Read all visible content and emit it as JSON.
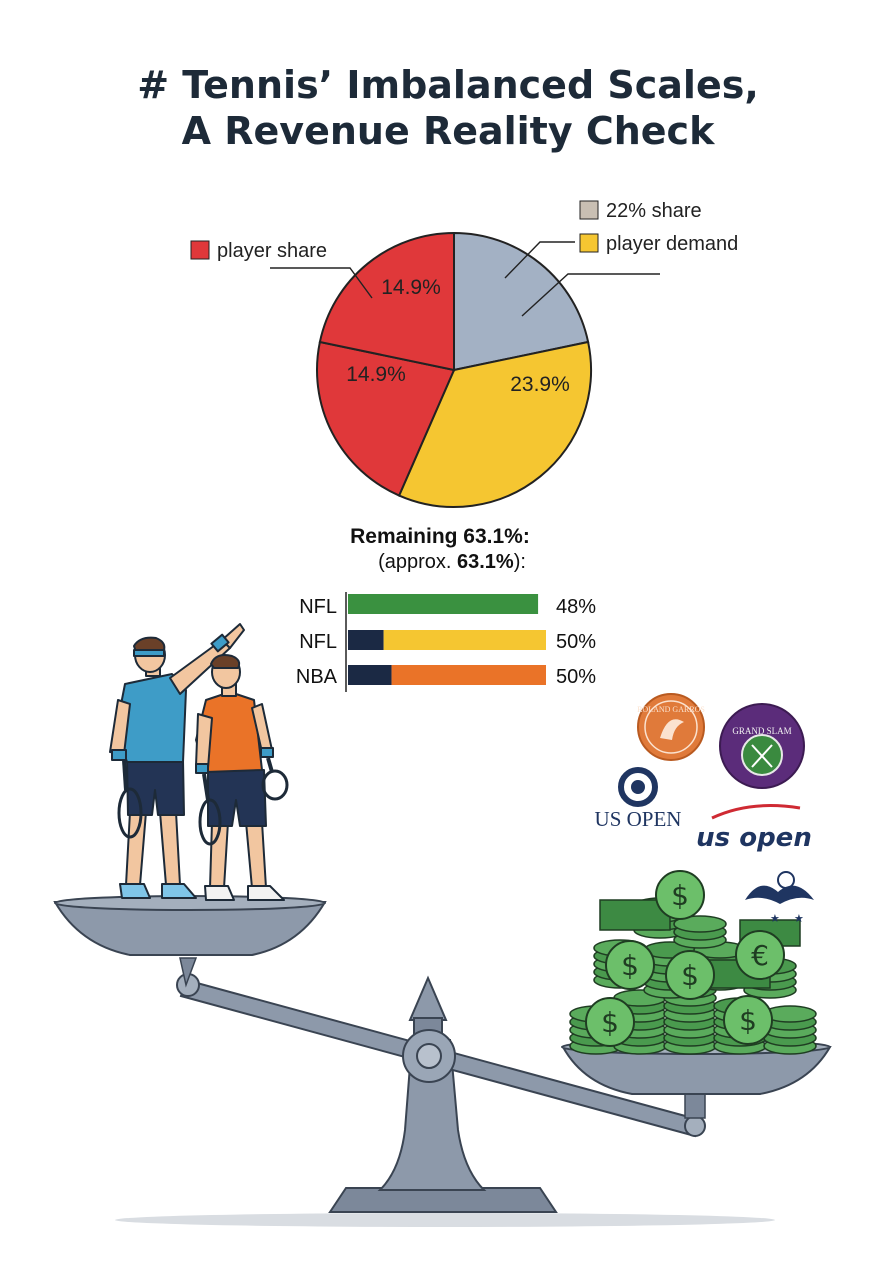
{
  "title_lines": [
    "# Tennis’ Imbalanced Scales,",
    "A Revenue Reality Check"
  ],
  "colors": {
    "red": "#e0383a",
    "gray_blue": "#a3b1c4",
    "yellow": "#f5c631",
    "green": "#3a9140",
    "navy": "#1b2944",
    "orange": "#ea7328",
    "scale_metal": "#8d99aa"
  },
  "chart_data": [
    {
      "type": "pie",
      "slices": [
        {
          "label": "14.9%",
          "value": 14.9,
          "color": "#a3b1c4"
        },
        {
          "label": "23.9%",
          "value": 23.9,
          "color": "#f5c631"
        },
        {
          "label": "14.9%",
          "value": 14.9,
          "color": "#e0383a"
        },
        {
          "label": "14.9%",
          "value": 14.9,
          "color": "#e0383a"
        }
      ],
      "legend": [
        {
          "label": "player share",
          "color": "#e0383a"
        },
        {
          "label": "22% share",
          "color": "#c9bfb3"
        },
        {
          "label": "player demand",
          "color": "#f5c631"
        }
      ]
    },
    {
      "type": "bar",
      "title": "Remaining 63.1%:",
      "subtitle_prefix": "(approx. ",
      "subtitle_value": "63.1%",
      "subtitle_suffix": "):",
      "categories": [
        "NFL",
        "NFL",
        "NBA"
      ],
      "values": [
        48,
        50,
        50
      ],
      "value_labels": [
        "48%",
        "50%",
        "50%"
      ],
      "segments": [
        [
          {
            "share": 1.0,
            "color": "#3a9140"
          }
        ],
        [
          {
            "share": 0.18,
            "color": "#1b2944"
          },
          {
            "share": 0.82,
            "color": "#f5c631"
          }
        ],
        [
          {
            "share": 0.22,
            "color": "#1b2944"
          },
          {
            "share": 0.78,
            "color": "#ea7328"
          }
        ]
      ],
      "xlim": [
        0,
        50
      ]
    }
  ],
  "logos": {
    "roland_garros": "ROLAND GARROS",
    "wimbledon": "GRAND SLAM",
    "us_open_serif": "US OPEN",
    "us_open_script": "us open"
  },
  "money_symbols": [
    "$",
    "$",
    "$",
    "$",
    "$",
    "€"
  ]
}
